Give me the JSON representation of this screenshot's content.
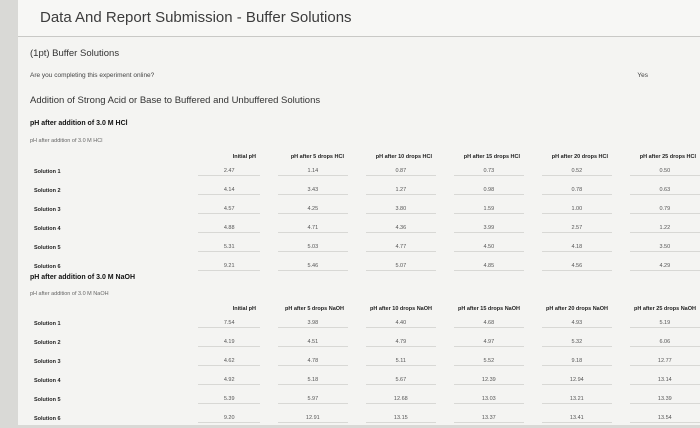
{
  "header": {
    "title": "Data And Report Submission - Buffer Solutions"
  },
  "question": {
    "label": "(1pt) Buffer Solutions",
    "prompt": "Are you completing this experiment online?",
    "answer": "Yes"
  },
  "section_title": "Addition of Strong Acid or Base to Buffered and Unbuffered Solutions",
  "hcl": {
    "heading": "pH after addition of 3.0 M HCl",
    "caption": "pH after addition of 3.0 M HCl",
    "columns": [
      "Initial pH",
      "pH after 5 drops HCl",
      "pH after 10 drops HCl",
      "pH after 15 drops HCl",
      "pH after 20 drops HCl",
      "pH after 25 drops HCl"
    ],
    "rows": [
      {
        "label": "Solution 1",
        "values": [
          "2.47",
          "1.14",
          "0.87",
          "0.73",
          "0.52",
          "0.50"
        ]
      },
      {
        "label": "Solution 2",
        "values": [
          "4.14",
          "3.43",
          "1.27",
          "0.98",
          "0.78",
          "0.63"
        ]
      },
      {
        "label": "Solution 3",
        "values": [
          "4.57",
          "4.25",
          "3.80",
          "1.59",
          "1.00",
          "0.79"
        ]
      },
      {
        "label": "Solution 4",
        "values": [
          "4.88",
          "4.71",
          "4.36",
          "3.99",
          "2.57",
          "1.22"
        ]
      },
      {
        "label": "Solution 5",
        "values": [
          "5.31",
          "5.03",
          "4.77",
          "4.50",
          "4.18",
          "3.50"
        ]
      },
      {
        "label": "Solution 6",
        "values": [
          "9.21",
          "5.46",
          "5.07",
          "4.85",
          "4.56",
          "4.29"
        ]
      }
    ]
  },
  "naoh": {
    "heading": "pH after addition of 3.0 M NaOH",
    "caption": "pH after addition of 3.0 M NaOH",
    "columns": [
      "Initial pH",
      "pH after 5 drops NaOH",
      "pH after 10 drops NaOH",
      "pH after 15 drops NaOH",
      "pH after 20 drops NaOH",
      "pH after 25 drops NaOH"
    ],
    "rows": [
      {
        "label": "Solution 1",
        "values": [
          "7.54",
          "3.98",
          "4.40",
          "4.68",
          "4.93",
          "5.19"
        ]
      },
      {
        "label": "Solution 2",
        "values": [
          "4.19",
          "4.51",
          "4.79",
          "4.97",
          "5.32",
          "6.06"
        ]
      },
      {
        "label": "Solution 3",
        "values": [
          "4.62",
          "4.78",
          "5.11",
          "5.52",
          "9.18",
          "12.77"
        ]
      },
      {
        "label": "Solution 4",
        "values": [
          "4.92",
          "5.18",
          "5.67",
          "12.39",
          "12.94",
          "13.14"
        ]
      },
      {
        "label": "Solution 5",
        "values": [
          "5.39",
          "5.97",
          "12.68",
          "13.03",
          "13.21",
          "13.39"
        ]
      },
      {
        "label": "Solution 6",
        "values": [
          "9.20",
          "12.91",
          "13.15",
          "13.37",
          "13.41",
          "13.54"
        ]
      }
    ]
  }
}
